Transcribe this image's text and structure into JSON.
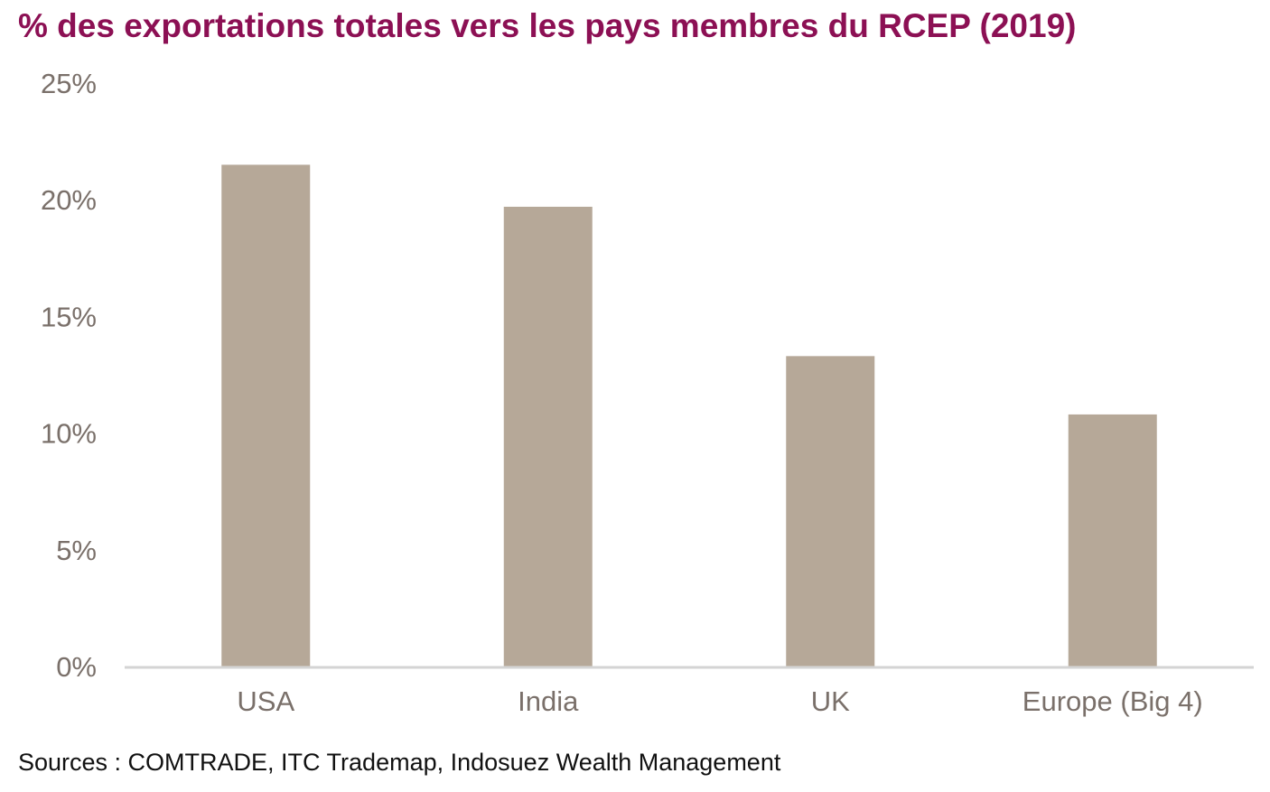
{
  "header": {
    "title": "% des exportations totales vers les pays membres du RCEP (2019)"
  },
  "footer": {
    "source": "Sources : COMTRADE, ITC Trademap, Indosuez Wealth Management"
  },
  "colors": {
    "title": "#8c1054",
    "bar": "#b6a898",
    "axis_text": "#7a706a",
    "axis_line": "#d4d4d4"
  },
  "chart_data": {
    "type": "bar",
    "title": "% des exportations totales vers les pays membres du RCEP (2019)",
    "xlabel": "",
    "ylabel": "",
    "categories": [
      "USA",
      "India",
      "UK",
      "Europe (Big 4)"
    ],
    "values": [
      21.5,
      19.7,
      13.3,
      10.8
    ],
    "value_unit": "%",
    "ylim": [
      0,
      25
    ],
    "yticks": [
      0,
      5,
      10,
      15,
      20,
      25
    ],
    "ytick_labels": [
      "0%",
      "5%",
      "10%",
      "15%",
      "20%",
      "25%"
    ],
    "grid": false,
    "legend": "none"
  }
}
